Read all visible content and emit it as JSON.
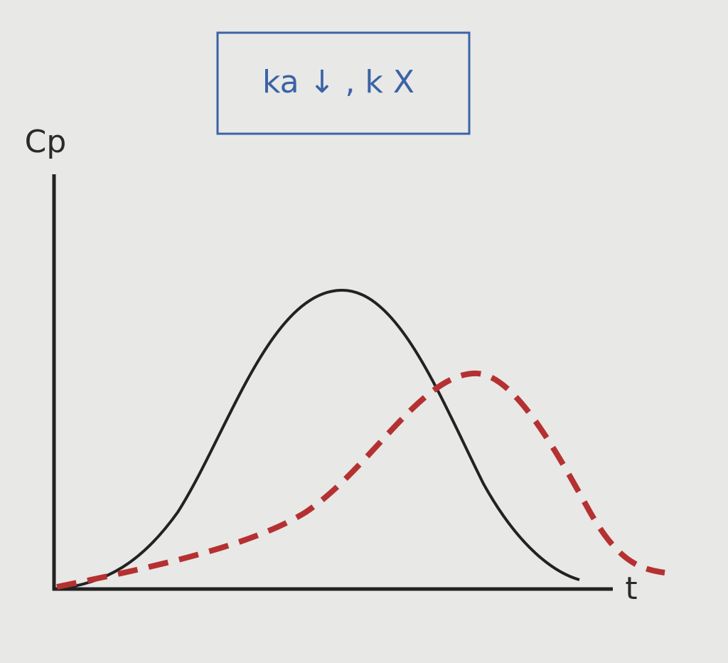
{
  "box": {
    "label": "ka ↓ , k X"
  },
  "axes": {
    "y_label": "Cp",
    "x_label": "t"
  }
}
